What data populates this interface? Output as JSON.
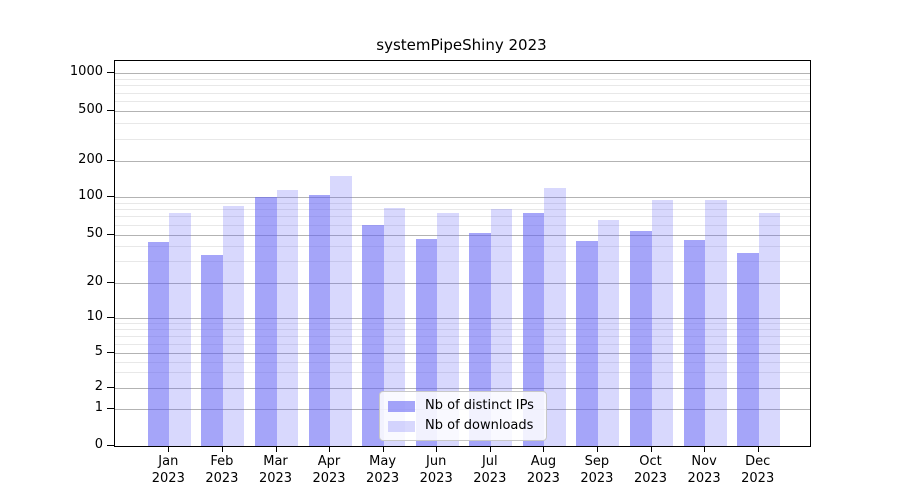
{
  "title": "systemPipeShiny 2023",
  "chart_data": {
    "type": "bar",
    "title": "systemPipeShiny 2023",
    "categories": [
      "Jan",
      "Feb",
      "Mar",
      "Apr",
      "May",
      "Jun",
      "Jul",
      "Aug",
      "Sep",
      "Oct",
      "Nov",
      "Dec"
    ],
    "year": "2023",
    "series": [
      {
        "name": "Nb of distinct IPs",
        "values": [
          43,
          34,
          100,
          105,
          60,
          46,
          51,
          75,
          44,
          53,
          45,
          35
        ],
        "color": "rgba(94,94,245,0.56)"
      },
      {
        "name": "Nb of downloads",
        "values": [
          75,
          85,
          115,
          150,
          82,
          75,
          80,
          120,
          65,
          94,
          95,
          75
        ],
        "color": "rgba(94,94,245,0.24)"
      }
    ],
    "xlabel": "",
    "ylabel": "",
    "yscale": "log-like",
    "ylim": [
      0,
      1000
    ],
    "y_ticks": [
      0,
      1,
      2,
      5,
      10,
      20,
      50,
      100,
      200,
      500,
      1000
    ],
    "y_minor_ticks": [
      3,
      4,
      6,
      7,
      8,
      9,
      30,
      40,
      60,
      70,
      80,
      90,
      300,
      400,
      600,
      700,
      800,
      900
    ],
    "grid": true,
    "legend_position": "lower center"
  },
  "colors": {
    "bar_distinct_ips": "rgba(94,94,245,0.56)",
    "bar_downloads": "rgba(94,94,245,0.24)",
    "grid_major": "#b3b3b3",
    "grid_minor": "#e8e8e8",
    "spine": "#000000",
    "text": "#000000"
  }
}
